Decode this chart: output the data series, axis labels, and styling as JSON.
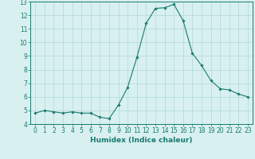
{
  "x": [
    0,
    1,
    2,
    3,
    4,
    5,
    6,
    7,
    8,
    9,
    10,
    11,
    12,
    13,
    14,
    15,
    16,
    17,
    18,
    19,
    20,
    21,
    22,
    23
  ],
  "y": [
    4.8,
    5.0,
    4.9,
    4.8,
    4.9,
    4.8,
    4.8,
    4.5,
    4.4,
    5.4,
    6.7,
    8.9,
    11.4,
    12.5,
    12.55,
    12.8,
    11.6,
    9.2,
    8.3,
    7.2,
    6.6,
    6.5,
    6.2,
    6.0
  ],
  "line_color": "#1a7a6e",
  "marker": "D",
  "marker_size": 1.8,
  "linewidth": 0.8,
  "xlabel": "Humidex (Indice chaleur)",
  "ylabel": "",
  "title": "",
  "xlim": [
    -0.5,
    23.5
  ],
  "ylim": [
    4,
    13
  ],
  "yticks": [
    4,
    5,
    6,
    7,
    8,
    9,
    10,
    11,
    12,
    13
  ],
  "xticks": [
    0,
    1,
    2,
    3,
    4,
    5,
    6,
    7,
    8,
    9,
    10,
    11,
    12,
    13,
    14,
    15,
    16,
    17,
    18,
    19,
    20,
    21,
    22,
    23
  ],
  "bg_color": "#d8f0f0",
  "grid_color": "#b0d8d8",
  "tick_color": "#1a7a6e",
  "label_fontsize": 6.5,
  "tick_fontsize": 5.5
}
